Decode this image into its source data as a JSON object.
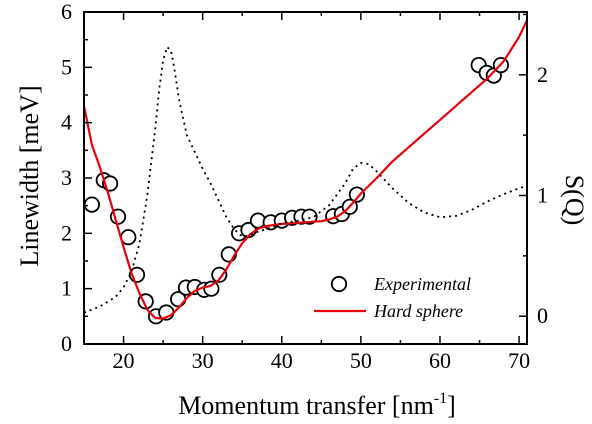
{
  "chart_data": {
    "type": "scatter",
    "title": "",
    "xlabel": "Momentum transfer [nm",
    "xlabel_sup": "-1",
    "xlabel_close": "]",
    "ylabel": "Linewidth [meV]",
    "y2label": "S(Q)",
    "xlim": [
      15,
      71
    ],
    "ylim": [
      0,
      6
    ],
    "y2lim": [
      -0.23,
      2.52
    ],
    "xticks": [
      20,
      30,
      40,
      50,
      60,
      70
    ],
    "yticks": [
      0,
      1,
      2,
      3,
      4,
      5,
      6
    ],
    "y2ticks": [
      0,
      1,
      2
    ],
    "grid": false,
    "legend_position": "bottom-right",
    "colors": {
      "hard_sphere": "#e8000b",
      "experimental": "#000000",
      "sq": "#000000"
    },
    "series": [
      {
        "name": "Experimental",
        "style": "open-circle",
        "axis": "left",
        "x": [
          16.0,
          17.5,
          18.3,
          19.3,
          20.6,
          21.7,
          22.8,
          24.1,
          25.4,
          26.9,
          27.9,
          29.0,
          30.2,
          31.1,
          32.1,
          33.3,
          34.6,
          35.8,
          37.0,
          38.6,
          40.0,
          41.3,
          42.5,
          43.5,
          46.5,
          47.6,
          48.6,
          49.5,
          64.9,
          65.9,
          66.8,
          67.7
        ],
        "y": [
          2.52,
          2.96,
          2.9,
          2.3,
          1.93,
          1.25,
          0.77,
          0.5,
          0.57,
          0.81,
          1.02,
          1.03,
          0.98,
          1.0,
          1.25,
          1.62,
          2.0,
          2.06,
          2.23,
          2.2,
          2.23,
          2.28,
          2.3,
          2.3,
          2.31,
          2.35,
          2.48,
          2.7,
          5.04,
          4.9,
          4.85,
          5.04
        ]
      },
      {
        "name": "Hard sphere",
        "style": "line",
        "axis": "left",
        "x": [
          15,
          16,
          17,
          18,
          19,
          20,
          21,
          22,
          23,
          24,
          25,
          26,
          27,
          28,
          29,
          30,
          31,
          32,
          33,
          34,
          35,
          36,
          37,
          38,
          39,
          40,
          41,
          42,
          43,
          44,
          45,
          46,
          47,
          48,
          49,
          50,
          52,
          54,
          56,
          58,
          60,
          62,
          64,
          66,
          68,
          70,
          71
        ],
        "y": [
          4.3,
          3.6,
          3.2,
          2.75,
          2.25,
          1.75,
          1.28,
          0.92,
          0.62,
          0.47,
          0.46,
          0.52,
          0.66,
          0.83,
          0.96,
          1.02,
          1.05,
          1.15,
          1.35,
          1.6,
          1.82,
          1.98,
          2.08,
          2.13,
          2.15,
          2.17,
          2.18,
          2.19,
          2.2,
          2.21,
          2.22,
          2.25,
          2.3,
          2.4,
          2.55,
          2.72,
          3.0,
          3.3,
          3.55,
          3.8,
          4.05,
          4.3,
          4.55,
          4.8,
          5.1,
          5.55,
          5.85
        ]
      },
      {
        "name": "S(Q)",
        "style": "dotted",
        "axis": "right",
        "x": [
          15,
          17,
          19,
          20,
          21,
          22,
          23,
          24,
          24.5,
          25,
          25.5,
          26,
          26.5,
          27,
          28,
          29,
          30,
          31,
          32,
          33,
          34,
          35,
          36,
          37,
          38,
          40,
          42,
          44,
          46,
          48,
          49,
          50,
          51,
          52,
          54,
          56,
          58,
          60,
          62,
          64,
          66,
          68,
          70,
          71
        ],
        "y": [
          0.03,
          0.08,
          0.16,
          0.24,
          0.37,
          0.6,
          1.0,
          1.55,
          1.88,
          2.12,
          2.23,
          2.2,
          2.02,
          1.8,
          1.5,
          1.36,
          1.22,
          1.1,
          0.96,
          0.82,
          0.72,
          0.66,
          0.67,
          0.7,
          0.72,
          0.77,
          0.79,
          0.82,
          0.92,
          1.1,
          1.22,
          1.27,
          1.26,
          1.2,
          1.06,
          0.94,
          0.86,
          0.82,
          0.83,
          0.88,
          0.95,
          1.01,
          1.06,
          1.08
        ]
      }
    ]
  }
}
